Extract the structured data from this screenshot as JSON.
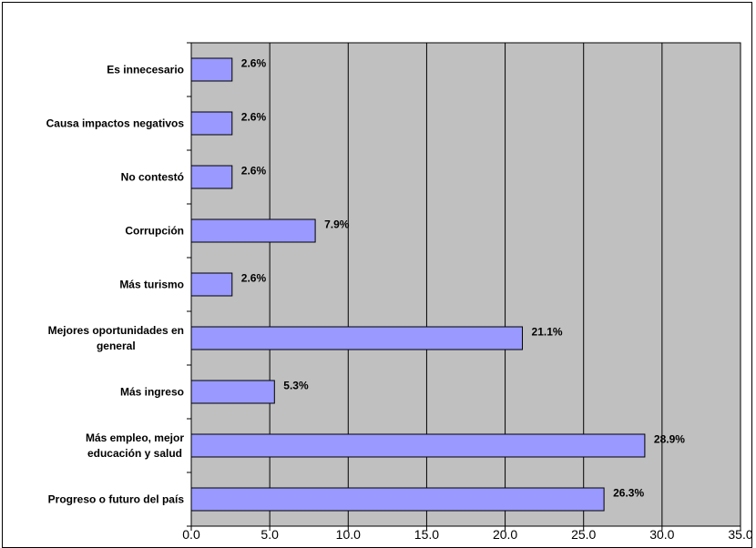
{
  "chart_data": {
    "type": "bar",
    "orientation": "horizontal",
    "categories": [
      "Es innecesario",
      "Causa impactos negativos",
      "No contestó",
      "Corrupción",
      "Más turismo",
      "Mejores oportunidades en general",
      "Más ingreso",
      "Más empleo, mejor educación y salud",
      "Progreso o futuro del país"
    ],
    "category_lines": [
      [
        "Es innecesario"
      ],
      [
        "Causa impactos negativos"
      ],
      [
        "No contestó"
      ],
      [
        "Corrupción"
      ],
      [
        "Más turismo"
      ],
      [
        "Mejores oportunidades en",
        "general"
      ],
      [
        "Más ingreso"
      ],
      [
        "Más empleo, mejor",
        "educación y salud"
      ],
      [
        "Progreso o futuro del país"
      ]
    ],
    "values": [
      2.6,
      2.6,
      2.6,
      7.9,
      2.6,
      21.1,
      5.3,
      28.9,
      26.3
    ],
    "value_labels": [
      "2.6%",
      "2.6%",
      "2.6%",
      "7.9%",
      "2.6%",
      "21.1%",
      "5.3%",
      "28.9%",
      "26.3%"
    ],
    "xlim": [
      0,
      35
    ],
    "x_ticks": [
      "0.0",
      "5.0",
      "10.0",
      "15.0",
      "20.0",
      "25.0",
      "30.0",
      "35.0"
    ],
    "title": "",
    "xlabel": "",
    "ylabel": "",
    "grid": "vertical",
    "colors": {
      "bar_fill": "#9999FF",
      "bar_stroke": "#000000",
      "plot_background": "#C0C0C0",
      "gridline": "#000000"
    }
  }
}
